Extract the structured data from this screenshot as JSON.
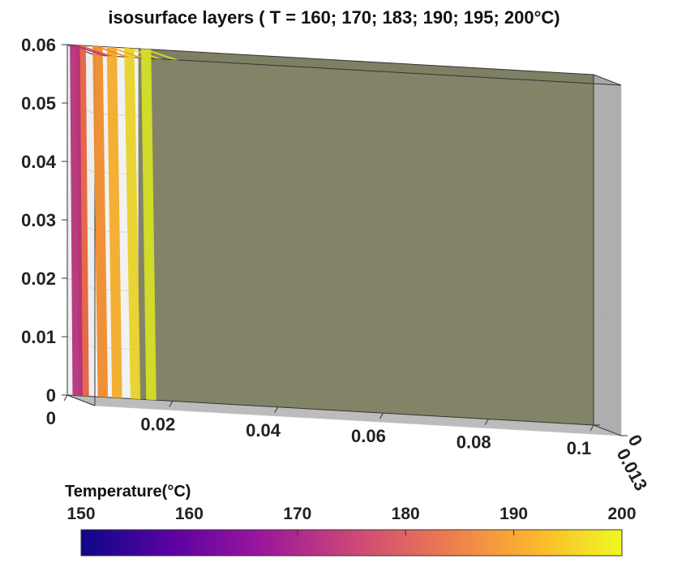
{
  "chart_data": {
    "type": "isosurface-3d",
    "title": "isosurface layers ( T = 160; 170; 183; 190; 195; 200°C)",
    "x_ticks": [
      "0",
      "0.02",
      "0.04",
      "0.06",
      "0.08",
      "0.1"
    ],
    "y_ticks": [
      "0",
      "0.013"
    ],
    "z_ticks": [
      "0",
      "0.01",
      "0.02",
      "0.03",
      "0.04",
      "0.05",
      "0.06"
    ],
    "xlim": [
      0,
      0.1
    ],
    "ylim": [
      0,
      0.013
    ],
    "zlim": [
      0,
      0.06
    ],
    "grid": true,
    "isosurfaces": [
      {
        "T": 160,
        "x_front_bottom": 0.001,
        "x_front_top": 0.0005,
        "color": "#b4327a"
      },
      {
        "T": 170,
        "x_front_bottom": 0.0022,
        "x_front_top": 0.0016,
        "color": "#e5613f"
      },
      {
        "T": 183,
        "x_front_bottom": 0.0058,
        "x_front_top": 0.0048,
        "color": "#ee8b2c"
      },
      {
        "T": 190,
        "x_front_bottom": 0.0085,
        "x_front_top": 0.0075,
        "color": "#f3ab2a"
      },
      {
        "T": 195,
        "x_front_bottom": 0.012,
        "x_front_top": 0.0108,
        "color": "#e7d329"
      },
      {
        "T": 200,
        "x_front_bottom": 0.015,
        "x_front_top": 0.014,
        "color": "#d4df27"
      }
    ],
    "domain_box_color": "#7b7b5e",
    "colorbar": {
      "label": "Temperature(°C)",
      "ticks": [
        "150",
        "160",
        "170",
        "180",
        "190",
        "200"
      ],
      "range": [
        150,
        200
      ],
      "colormap": [
        "#0d0887",
        "#5b02a3",
        "#9a179b",
        "#cb4678",
        "#eb7852",
        "#fbb32f",
        "#f0f921"
      ]
    }
  }
}
